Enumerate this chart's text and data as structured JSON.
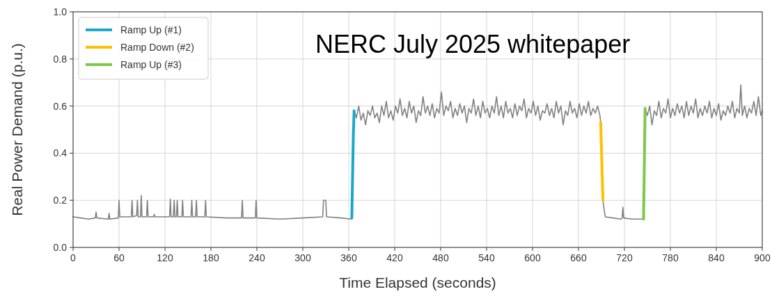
{
  "chart_data": {
    "type": "line",
    "xlabel": "Time Elapsed (seconds)",
    "ylabel": "Real Power Demand (p.u.)",
    "xlim": [
      0,
      900
    ],
    "ylim": [
      0,
      1
    ],
    "xticks": [
      0,
      60,
      120,
      180,
      240,
      300,
      360,
      420,
      480,
      540,
      600,
      660,
      720,
      780,
      840,
      900
    ],
    "yticks": [
      {
        "value": 0,
        "label": "0.0"
      },
      {
        "value": 0.2,
        "label": "0.2"
      },
      {
        "value": 0.4,
        "label": "0.4"
      },
      {
        "value": 0.6,
        "label": "0.6"
      },
      {
        "value": 0.8,
        "label": "0.8"
      },
      {
        "value": 1,
        "label": "1.0"
      }
    ],
    "grid": true,
    "legend": "top left",
    "line_style": "solid",
    "marker": "none",
    "annotations": [
      "NERC July 2025 whitepaper"
    ],
    "series": [
      {
        "color": "#808080",
        "x": [
          0,
          10,
          20,
          29,
          30,
          31,
          46,
          47,
          48,
          59,
          60,
          61,
          76,
          77,
          78,
          83,
          84,
          85,
          88,
          89,
          90,
          96,
          97,
          98,
          105,
          106,
          107,
          126,
          127,
          128,
          131,
          132,
          133,
          135,
          136,
          137,
          142,
          143,
          144,
          154,
          155,
          156,
          160,
          161,
          162,
          172,
          173,
          174,
          200,
          220,
          221,
          222,
          238,
          239,
          240,
          270,
          300,
          326,
          327,
          330,
          331,
          350,
          363,
          364,
          367,
          370,
          373,
          376,
          379,
          382,
          385,
          388,
          391,
          394,
          397,
          400,
          403,
          406,
          409,
          412,
          415,
          418,
          421,
          424,
          427,
          430,
          433,
          436,
          439,
          442,
          445,
          448,
          451,
          454,
          457,
          460,
          463,
          466,
          469,
          472,
          475,
          478,
          481,
          484,
          487,
          490,
          493,
          496,
          499,
          502,
          505,
          508,
          511,
          514,
          517,
          520,
          523,
          526,
          529,
          532,
          535,
          538,
          541,
          544,
          547,
          550,
          553,
          556,
          559,
          562,
          565,
          568,
          571,
          574,
          577,
          580,
          583,
          586,
          589,
          592,
          595,
          598,
          601,
          604,
          607,
          610,
          613,
          616,
          619,
          622,
          625,
          628,
          631,
          634,
          637,
          640,
          643,
          646,
          649,
          652,
          655,
          658,
          661,
          664,
          667,
          670,
          673,
          676,
          679,
          682,
          685,
          688,
          689,
          692,
          693,
          695,
          705,
          715,
          717,
          718,
          719,
          730,
          740,
          745,
          747,
          750,
          753,
          756,
          759,
          762,
          765,
          768,
          771,
          774,
          777,
          780,
          783,
          786,
          789,
          792,
          795,
          798,
          801,
          804,
          807,
          810,
          813,
          816,
          819,
          822,
          825,
          828,
          831,
          834,
          837,
          840,
          843,
          846,
          849,
          852,
          855,
          858,
          861,
          864,
          867,
          870,
          872,
          874,
          877,
          880,
          883,
          886,
          889,
          892,
          895,
          898,
          900
        ],
        "values": [
          0.13,
          0.125,
          0.12,
          0.125,
          0.15,
          0.125,
          0.12,
          0.145,
          0.12,
          0.125,
          0.2,
          0.13,
          0.13,
          0.2,
          0.13,
          0.135,
          0.2,
          0.13,
          0.13,
          0.22,
          0.13,
          0.13,
          0.2,
          0.13,
          0.13,
          0.14,
          0.13,
          0.13,
          0.205,
          0.13,
          0.13,
          0.2,
          0.13,
          0.13,
          0.2,
          0.13,
          0.13,
          0.2,
          0.13,
          0.13,
          0.2,
          0.13,
          0.13,
          0.2,
          0.13,
          0.13,
          0.2,
          0.13,
          0.125,
          0.125,
          0.2,
          0.125,
          0.125,
          0.2,
          0.125,
          0.12,
          0.125,
          0.13,
          0.2,
          0.2,
          0.13,
          0.125,
          0.12,
          0.125,
          0.58,
          0.55,
          0.6,
          0.54,
          0.57,
          0.52,
          0.58,
          0.56,
          0.6,
          0.55,
          0.57,
          0.53,
          0.6,
          0.56,
          0.62,
          0.55,
          0.58,
          0.54,
          0.6,
          0.57,
          0.63,
          0.56,
          0.59,
          0.55,
          0.62,
          0.57,
          0.6,
          0.53,
          0.58,
          0.56,
          0.64,
          0.57,
          0.6,
          0.56,
          0.61,
          0.55,
          0.59,
          0.57,
          0.66,
          0.56,
          0.6,
          0.58,
          0.62,
          0.55,
          0.59,
          0.56,
          0.61,
          0.57,
          0.6,
          0.53,
          0.59,
          0.57,
          0.63,
          0.56,
          0.6,
          0.55,
          0.62,
          0.57,
          0.59,
          0.55,
          0.6,
          0.57,
          0.64,
          0.56,
          0.6,
          0.55,
          0.62,
          0.57,
          0.59,
          0.55,
          0.61,
          0.56,
          0.6,
          0.58,
          0.63,
          0.55,
          0.59,
          0.57,
          0.62,
          0.56,
          0.6,
          0.54,
          0.58,
          0.57,
          0.61,
          0.56,
          0.59,
          0.55,
          0.62,
          0.57,
          0.6,
          0.52,
          0.58,
          0.56,
          0.62,
          0.57,
          0.59,
          0.55,
          0.61,
          0.56,
          0.6,
          0.57,
          0.62,
          0.56,
          0.59,
          0.57,
          0.6,
          0.56,
          0.53,
          0.2,
          0.17,
          0.13,
          0.125,
          0.12,
          0.125,
          0.17,
          0.125,
          0.12,
          0.12,
          0.12,
          0.59,
          0.56,
          0.6,
          0.52,
          0.58,
          0.56,
          0.62,
          0.55,
          0.59,
          0.57,
          0.63,
          0.55,
          0.59,
          0.56,
          0.61,
          0.57,
          0.6,
          0.55,
          0.62,
          0.56,
          0.6,
          0.57,
          0.63,
          0.55,
          0.59,
          0.56,
          0.6,
          0.57,
          0.62,
          0.55,
          0.59,
          0.56,
          0.61,
          0.54,
          0.58,
          0.56,
          0.6,
          0.57,
          0.62,
          0.55,
          0.59,
          0.57,
          0.69,
          0.56,
          0.6,
          0.55,
          0.59,
          0.57,
          0.62,
          0.56,
          0.64,
          0.56,
          0.58
        ]
      },
      {
        "name": "Ramp Up (#1)",
        "color": "#1aa7c9",
        "x": [
          364,
          365,
          366,
          367
        ],
        "values": [
          0.125,
          0.3,
          0.48,
          0.58
        ]
      },
      {
        "name": "Ramp Down (#2)",
        "color": "#ffc000",
        "x": [
          689,
          690,
          691,
          692
        ],
        "values": [
          0.53,
          0.42,
          0.3,
          0.2
        ]
      },
      {
        "name": "Ramp Up (#3)",
        "color": "#7dc84a",
        "x": [
          745,
          746,
          747
        ],
        "values": [
          0.12,
          0.35,
          0.59
        ]
      }
    ]
  }
}
